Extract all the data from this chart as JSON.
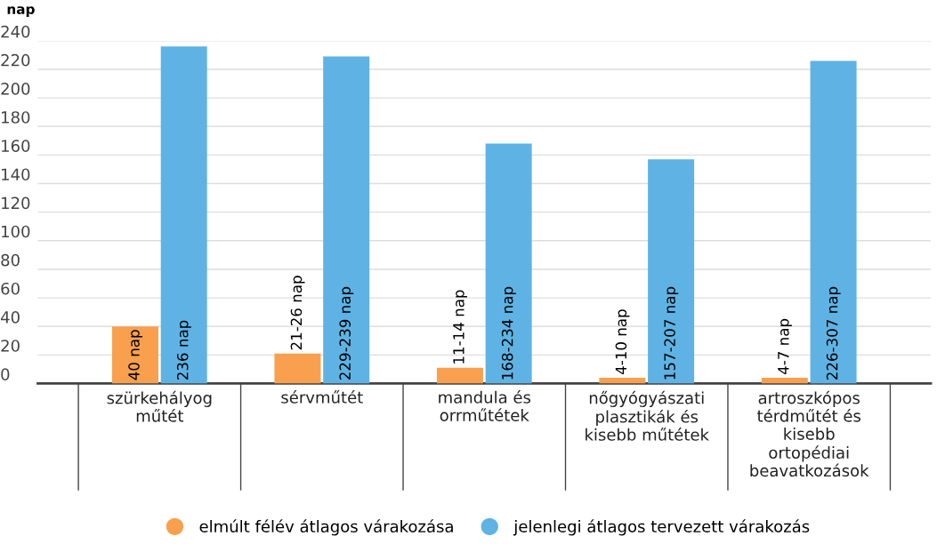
{
  "chart_data": {
    "type": "bar",
    "ylabel": "nap",
    "categories": [
      "szürkehályog műtét",
      "sérvműtét",
      "mandula és orrműtétek",
      "nőgyógyászati plasztikák és kisebb műtétek",
      "artroszkópos térdműtét és kisebb ortopédiai beavatkozások"
    ],
    "series": [
      {
        "name": "elmúlt félév átlagos várakozása",
        "color": "#f9a04e",
        "values": [
          40,
          21,
          11,
          4,
          4
        ],
        "value_labels": [
          "40 nap",
          "21-26 nap",
          "11-14 nap",
          "4-10 nap",
          "4-7 nap"
        ]
      },
      {
        "name": "jelenlegi átlagos tervezett várakozás",
        "color": "#5eb3e4",
        "values": [
          236,
          229,
          168,
          157,
          226
        ],
        "value_labels": [
          "236 nap",
          "229-239 nap",
          "168-234 nap",
          "157-207 nap",
          "226-307 nap"
        ]
      }
    ],
    "ylim": [
      0,
      240
    ],
    "yticks": [
      0,
      20,
      40,
      60,
      80,
      100,
      120,
      140,
      160,
      180,
      200,
      220,
      240
    ],
    "grid": "y",
    "legend": "bottom"
  }
}
